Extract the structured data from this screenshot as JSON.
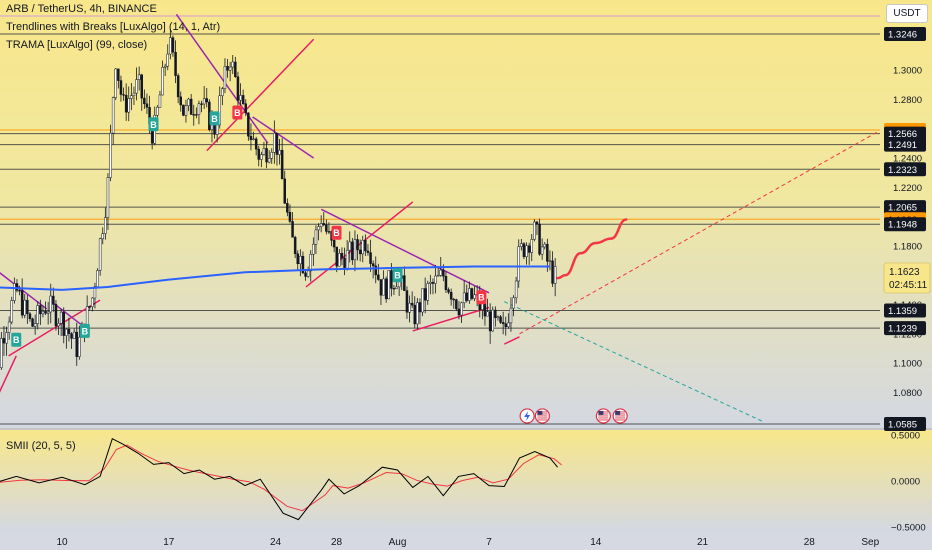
{
  "header": {
    "symbol": "ARB / TetherUS, 4h, BINANCE",
    "indicator1": "Trendlines with Breaks [LuxAlgo] (14, 1, Atr)",
    "indicator2": "TRAMA [LuxAlgo] (99, close)",
    "currency_button": "USDT"
  },
  "oscillator": {
    "label": "SMII (20, 5, 5)"
  },
  "colors": {
    "bg_top": "#f8e78a",
    "bg_bottom": "#d4d8e2",
    "candle": "#131722",
    "trama": "#2962ff",
    "trendline_up": "#e91e63",
    "trendline_down": "#9c27b0",
    "projection": "#f23645",
    "up_extension": "#f23645",
    "down_extension": "#26a69a",
    "smi": "#000000",
    "smi_signal": "#f23645",
    "buy_badge": "#26a69a",
    "sell_badge": "#f23645",
    "level_orange": "#ff9800",
    "last_price_tag": "#f8e78a"
  },
  "chart_data": [
    {
      "type": "candlestick",
      "title": "ARB / TetherUS, 4h, BINANCE",
      "x_ticks": [
        "10",
        "17",
        "24",
        "28",
        "Aug",
        "7",
        "14",
        "21",
        "28",
        "Sep"
      ],
      "y_ticks": [
        1.08,
        1.1,
        1.12,
        1.14,
        1.16,
        1.18,
        1.2,
        1.22,
        1.24,
        1.26,
        1.28,
        1.3
      ],
      "y_tick_labels": [
        "1.0800",
        "1.1000",
        "1.1200",
        "1.1400",
        "1.1600",
        "1.1800",
        "1.2000",
        "1.2200",
        "1.2400",
        "1.2600",
        "1.2800",
        "1.3000"
      ],
      "ylim": [
        1.0585,
        1.3246
      ],
      "close_path": [
        {
          "date": "2023-07-05",
          "price": 1.137
        },
        {
          "date": "2023-07-05.5",
          "price": 1.07
        },
        {
          "date": "2023-07-06",
          "price": 1.115
        },
        {
          "date": "2023-07-07",
          "price": 1.15
        },
        {
          "date": "2023-07-08",
          "price": 1.125
        },
        {
          "date": "2023-07-09",
          "price": 1.14
        },
        {
          "date": "2023-07-10",
          "price": 1.13
        },
        {
          "date": "2023-07-11",
          "price": 1.11
        },
        {
          "date": "2023-07-12",
          "price": 1.145
        },
        {
          "date": "2023-07-13",
          "price": 1.22
        },
        {
          "date": "2023-07-13.5",
          "price": 1.31
        },
        {
          "date": "2023-07-14",
          "price": 1.275
        },
        {
          "date": "2023-07-15",
          "price": 1.29
        },
        {
          "date": "2023-07-16",
          "price": 1.255
        },
        {
          "date": "2023-07-17",
          "price": 1.32
        },
        {
          "date": "2023-07-18",
          "price": 1.27
        },
        {
          "date": "2023-07-19",
          "price": 1.28
        },
        {
          "date": "2023-07-20",
          "price": 1.26
        },
        {
          "date": "2023-07-21",
          "price": 1.31
        },
        {
          "date": "2023-07-22",
          "price": 1.265
        },
        {
          "date": "2023-07-23",
          "price": 1.24
        },
        {
          "date": "2023-07-24",
          "price": 1.255
        },
        {
          "date": "2023-07-25",
          "price": 1.185
        },
        {
          "date": "2023-07-26",
          "price": 1.165
        },
        {
          "date": "2023-07-27",
          "price": 1.2
        },
        {
          "date": "2023-07-28",
          "price": 1.17
        },
        {
          "date": "2023-07-29",
          "price": 1.175
        },
        {
          "date": "2023-07-30",
          "price": 1.185
        },
        {
          "date": "2023-07-31",
          "price": 1.15
        },
        {
          "date": "2023-08-01",
          "price": 1.16
        },
        {
          "date": "2023-08-02",
          "price": 1.13
        },
        {
          "date": "2023-08-03",
          "price": 1.15
        },
        {
          "date": "2023-08-04",
          "price": 1.16
        },
        {
          "date": "2023-08-05",
          "price": 1.14
        },
        {
          "date": "2023-08-06",
          "price": 1.145
        },
        {
          "date": "2023-08-07",
          "price": 1.13
        },
        {
          "date": "2023-08-08",
          "price": 1.12
        },
        {
          "date": "2023-08-09",
          "price": 1.175
        },
        {
          "date": "2023-08-10",
          "price": 1.19
        },
        {
          "date": "2023-08-11",
          "price": 1.165
        },
        {
          "date": "2023-08-11.5",
          "price": 1.155
        }
      ],
      "trama_path": [
        {
          "date": "2023-07-05",
          "price": 1.152
        },
        {
          "date": "2023-07-10",
          "price": 1.15
        },
        {
          "date": "2023-07-13",
          "price": 1.152
        },
        {
          "date": "2023-07-17",
          "price": 1.157
        },
        {
          "date": "2023-07-22",
          "price": 1.162
        },
        {
          "date": "2023-07-27",
          "price": 1.164
        },
        {
          "date": "2023-08-01",
          "price": 1.165
        },
        {
          "date": "2023-08-06",
          "price": 1.166
        },
        {
          "date": "2023-08-11",
          "price": 1.166
        }
      ],
      "projection_path": [
        {
          "date": "2023-08-11.5",
          "price": 1.158
        },
        {
          "date": "2023-08-12",
          "price": 1.16
        },
        {
          "date": "2023-08-13",
          "price": 1.175
        },
        {
          "date": "2023-08-14",
          "price": 1.182
        },
        {
          "date": "2023-08-15",
          "price": 1.185
        },
        {
          "date": "2023-08-16",
          "price": 1.198
        }
      ],
      "price_levels": [
        {
          "price": 1.3246,
          "label": "1.3246",
          "style": "dark"
        },
        {
          "price": 1.2591,
          "label": "1.2591",
          "style": "orange"
        },
        {
          "price": 1.2566,
          "label": "1.2566",
          "style": "dark"
        },
        {
          "price": 1.2491,
          "label": "1.2491",
          "style": "dark"
        },
        {
          "price": 1.2323,
          "label": "1.2323",
          "style": "dark"
        },
        {
          "price": 1.2065,
          "label": "1.2065",
          "style": "dark"
        },
        {
          "price": 1.1982,
          "label": "1.1982",
          "style": "orange"
        },
        {
          "price": 1.1948,
          "label": "1.1948",
          "style": "dark"
        },
        {
          "price": 1.1359,
          "label": "1.1359",
          "style": "dark"
        },
        {
          "price": 1.1239,
          "label": "1.1239",
          "style": "dark"
        },
        {
          "price": 1.0585,
          "label": "1.0585",
          "style": "dark"
        }
      ],
      "last_price": {
        "price": 1.1623,
        "label": "1.1623",
        "countdown": "02:45:11"
      },
      "badges": [
        {
          "date": "2023-07-07",
          "price": 1.116,
          "kind": "buy",
          "text": "B"
        },
        {
          "date": "2023-07-11.5",
          "price": 1.122,
          "kind": "buy",
          "text": "B"
        },
        {
          "date": "2023-07-16",
          "price": 1.263,
          "kind": "buy",
          "text": "B"
        },
        {
          "date": "2023-07-20",
          "price": 1.267,
          "kind": "buy",
          "text": "B"
        },
        {
          "date": "2023-07-21.5",
          "price": 1.271,
          "kind": "sell",
          "text": "B"
        },
        {
          "date": "2023-07-28",
          "price": 1.189,
          "kind": "sell",
          "text": "B"
        },
        {
          "date": "2023-08-01",
          "price": 1.16,
          "kind": "buy",
          "text": "B"
        },
        {
          "date": "2023-08-06.5",
          "price": 1.145,
          "kind": "sell",
          "text": "B"
        }
      ]
    },
    {
      "type": "line",
      "title": "SMII (20, 5, 5)",
      "y_ticks": [
        0.5,
        0.0,
        -0.5
      ],
      "y_tick_labels": [
        "0.5000",
        "0.0000",
        "−0.5000"
      ],
      "ylim": [
        -0.5,
        0.5
      ]
    }
  ]
}
